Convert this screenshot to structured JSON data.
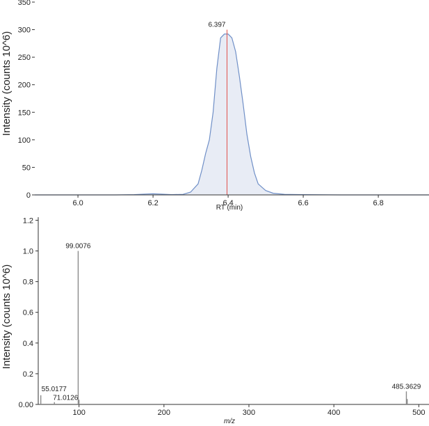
{
  "chart_data": [
    {
      "type": "area",
      "xlabel": "RT (min)",
      "ylabel": "Intensity (counts 10^6)",
      "xlim": [
        5.885,
        6.935
      ],
      "ylim": [
        0,
        350
      ],
      "xticks": [
        "6.0",
        "6.2",
        "6.4",
        "6.6",
        "6.8"
      ],
      "xtick_values": [
        6.0,
        6.2,
        6.4,
        6.6,
        6.8
      ],
      "yticks": [
        "0",
        "50",
        "100",
        "150",
        "200",
        "250",
        "300",
        "350"
      ],
      "ytick_values": [
        0,
        50,
        100,
        150,
        200,
        250,
        300,
        350
      ],
      "apex_label": "6.397",
      "apex_rt": 6.397,
      "marker_color": "#e0504a",
      "trace_color": "#6f8fc7",
      "fill_color": "#e8ecf5",
      "series": [
        {
          "x": [
            5.885,
            6.0,
            6.1,
            6.15,
            6.18,
            6.2,
            6.22,
            6.25,
            6.28,
            6.3,
            6.32,
            6.33,
            6.34,
            6.35,
            6.36,
            6.37,
            6.38,
            6.39,
            6.4,
            6.41,
            6.42,
            6.43,
            6.44,
            6.45,
            6.46,
            6.47,
            6.48,
            6.5,
            6.52,
            6.55,
            6.6,
            6.7,
            6.8,
            6.935
          ],
          "y": [
            0,
            0,
            0,
            0.5,
            1.5,
            2,
            1.5,
            0.5,
            1,
            5,
            20,
            45,
            75,
            100,
            150,
            230,
            285,
            292,
            292,
            285,
            260,
            215,
            165,
            110,
            70,
            40,
            20,
            8,
            3,
            1,
            0.5,
            0,
            0,
            0
          ]
        }
      ]
    },
    {
      "type": "bar",
      "xlabel": "m/z",
      "ylabel": "Intensity (counts 10^6)",
      "xlim": [
        52,
        512
      ],
      "ylim": [
        0,
        1.22
      ],
      "xticks": [
        "100",
        "200",
        "300",
        "400",
        "500"
      ],
      "xtick_values": [
        100,
        200,
        300,
        400,
        500
      ],
      "yticks": [
        "0.00",
        "0.2",
        "0.4",
        "0.6",
        "0.8",
        "1.0",
        "1.2"
      ],
      "ytick_values": [
        0,
        0.2,
        0.4,
        0.6,
        0.8,
        1.0,
        1.2
      ],
      "bar_color": "#8a8a8a",
      "peaks": [
        {
          "mz": 55.0177,
          "intensity": 0.06,
          "label": "55.0177"
        },
        {
          "mz": 71.0126,
          "intensity": 0.015,
          "label": "71.0126"
        },
        {
          "mz": 99.0076,
          "intensity": 1.0,
          "label": "99.0076"
        },
        {
          "mz": 100.01,
          "intensity": 0.03,
          "label": ""
        },
        {
          "mz": 485.3629,
          "intensity": 0.085,
          "label": "485.3629"
        },
        {
          "mz": 486.37,
          "intensity": 0.035,
          "label": ""
        }
      ]
    }
  ]
}
